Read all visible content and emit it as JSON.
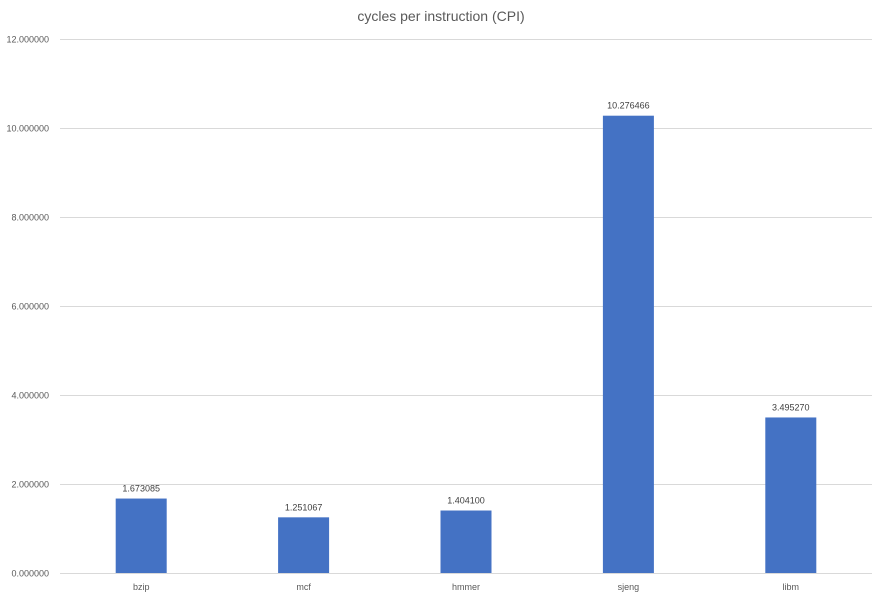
{
  "chart_data": {
    "type": "bar",
    "title": "cycles per instruction (CPI)",
    "categories": [
      "bzip",
      "mcf",
      "hmmer",
      "sjeng",
      "libm"
    ],
    "values": [
      1.673085,
      1.251067,
      1.4041,
      10.276466,
      3.49527
    ],
    "value_labels": [
      "1.673085",
      "1.251067",
      "1.404100",
      "10.276466",
      "3.495270"
    ],
    "y_ticks": [
      0,
      2,
      4,
      6,
      8,
      10,
      12
    ],
    "y_tick_labels": [
      "0.000000",
      "2.000000",
      "4.000000",
      "6.000000",
      "8.000000",
      "10.000000",
      "12.000000"
    ],
    "ylim": [
      0,
      12
    ],
    "grid": true,
    "legend": "none",
    "bar_color": "#4472c4"
  }
}
